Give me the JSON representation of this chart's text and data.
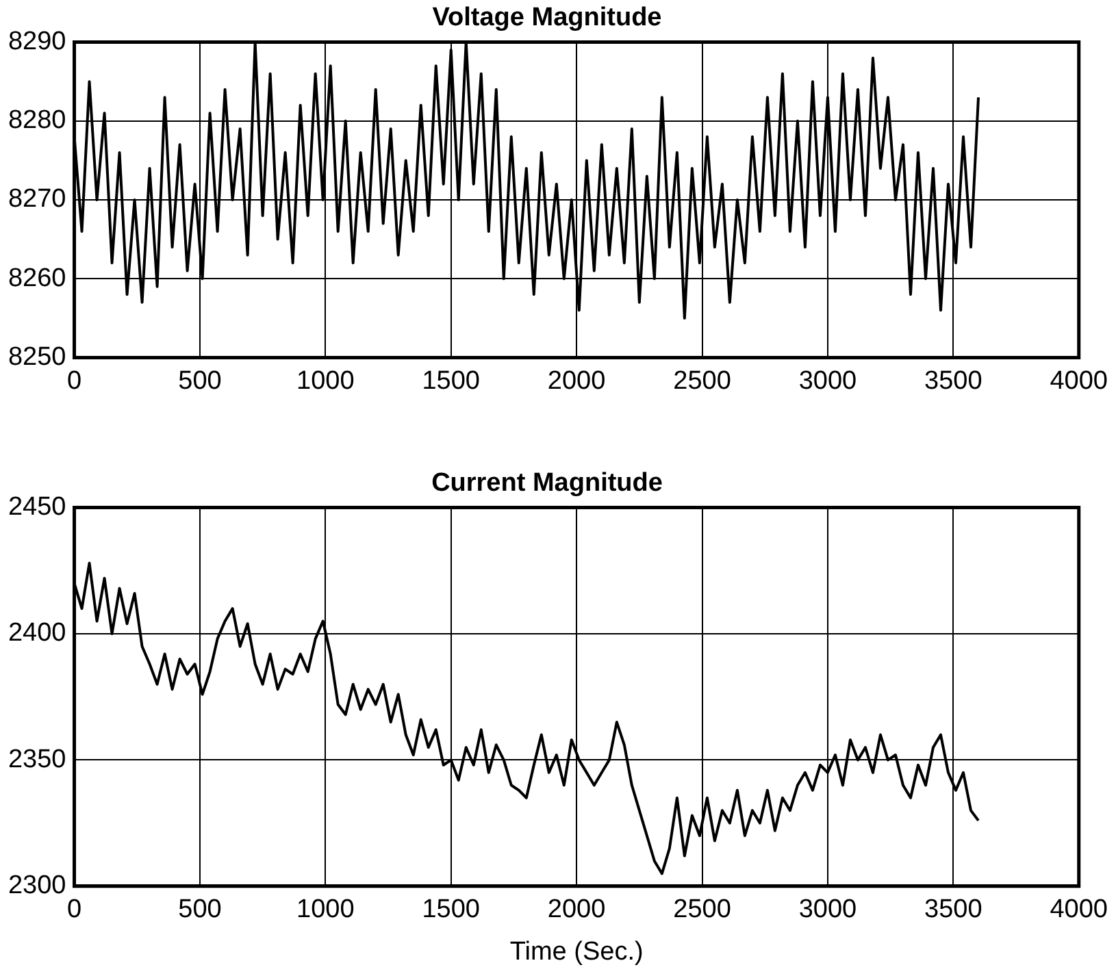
{
  "chart_data": [
    {
      "type": "line",
      "title": "Voltage Magnitude",
      "x": [
        0,
        30,
        60,
        90,
        120,
        150,
        180,
        210,
        240,
        270,
        300,
        330,
        360,
        390,
        420,
        450,
        480,
        510,
        540,
        570,
        600,
        630,
        660,
        690,
        720,
        750,
        780,
        810,
        840,
        870,
        900,
        930,
        960,
        990,
        1020,
        1050,
        1080,
        1110,
        1140,
        1170,
        1200,
        1230,
        1260,
        1290,
        1320,
        1350,
        1380,
        1410,
        1440,
        1470,
        1500,
        1530,
        1560,
        1590,
        1620,
        1650,
        1680,
        1710,
        1740,
        1770,
        1800,
        1830,
        1860,
        1890,
        1920,
        1950,
        1980,
        2010,
        2040,
        2070,
        2100,
        2130,
        2160,
        2190,
        2220,
        2250,
        2280,
        2310,
        2340,
        2370,
        2400,
        2430,
        2460,
        2490,
        2520,
        2550,
        2580,
        2610,
        2640,
        2670,
        2700,
        2730,
        2760,
        2790,
        2820,
        2850,
        2880,
        2910,
        2940,
        2970,
        3000,
        3030,
        3060,
        3090,
        3120,
        3150,
        3180,
        3210,
        3240,
        3270,
        3300,
        3330,
        3360,
        3390,
        3420,
        3450,
        3480,
        3510,
        3540,
        3570,
        3600
      ],
      "series": [
        {
          "color": "#000000",
          "values": [
            8278,
            8266,
            8285,
            8270,
            8281,
            8262,
            8276,
            8258,
            8270,
            8257,
            8274,
            8259,
            8283,
            8264,
            8277,
            8261,
            8272,
            8260,
            8281,
            8266,
            8284,
            8270,
            8279,
            8263,
            8290,
            8268,
            8286,
            8265,
            8276,
            8262,
            8282,
            8268,
            8286,
            8270,
            8287,
            8266,
            8280,
            8262,
            8276,
            8266,
            8284,
            8267,
            8279,
            8263,
            8275,
            8266,
            8282,
            8268,
            8287,
            8272,
            8289,
            8270,
            8290,
            8272,
            8286,
            8266,
            8284,
            8260,
            8278,
            8262,
            8274,
            8258,
            8276,
            8263,
            8272,
            8260,
            8270,
            8256,
            8275,
            8261,
            8277,
            8263,
            8274,
            8262,
            8279,
            8257,
            8273,
            8260,
            8283,
            8264,
            8276,
            8255,
            8274,
            8262,
            8278,
            8264,
            8272,
            8257,
            8270,
            8262,
            8278,
            8266,
            8283,
            8268,
            8286,
            8266,
            8280,
            8264,
            8285,
            8268,
            8283,
            8266,
            8286,
            8270,
            8284,
            8268,
            8288,
            8274,
            8283,
            8270,
            8277,
            8258,
            8276,
            8260,
            8274,
            8256,
            8272,
            8262,
            8278,
            8264,
            8283
          ]
        }
      ],
      "xlim": [
        0,
        4000
      ],
      "xticks": [
        0,
        500,
        1000,
        1500,
        2000,
        2500,
        3000,
        3500,
        4000
      ],
      "ylim": [
        8250,
        8290
      ],
      "yticks": [
        8250,
        8260,
        8270,
        8280,
        8290
      ],
      "grid": true,
      "legend": false,
      "marker": "none",
      "line_style": "solid"
    },
    {
      "type": "line",
      "title": "Current Magnitude",
      "xlabel": "Time (Sec.)",
      "x": [
        0,
        30,
        60,
        90,
        120,
        150,
        180,
        210,
        240,
        270,
        300,
        330,
        360,
        390,
        420,
        450,
        480,
        510,
        540,
        570,
        600,
        630,
        660,
        690,
        720,
        750,
        780,
        810,
        840,
        870,
        900,
        930,
        960,
        990,
        1020,
        1050,
        1080,
        1110,
        1140,
        1170,
        1200,
        1230,
        1260,
        1290,
        1320,
        1350,
        1380,
        1410,
        1440,
        1470,
        1500,
        1530,
        1560,
        1590,
        1620,
        1650,
        1680,
        1710,
        1740,
        1770,
        1800,
        1830,
        1860,
        1890,
        1920,
        1950,
        1980,
        2010,
        2040,
        2070,
        2100,
        2130,
        2160,
        2190,
        2220,
        2250,
        2280,
        2310,
        2340,
        2370,
        2400,
        2430,
        2460,
        2490,
        2520,
        2550,
        2580,
        2610,
        2640,
        2670,
        2700,
        2730,
        2760,
        2790,
        2820,
        2850,
        2880,
        2910,
        2940,
        2970,
        3000,
        3030,
        3060,
        3090,
        3120,
        3150,
        3180,
        3210,
        3240,
        3270,
        3300,
        3330,
        3360,
        3390,
        3420,
        3450,
        3480,
        3510,
        3540,
        3570,
        3600
      ],
      "series": [
        {
          "color": "#000000",
          "values": [
            2420,
            2410,
            2428,
            2405,
            2422,
            2400,
            2418,
            2404,
            2416,
            2395,
            2388,
            2380,
            2392,
            2378,
            2390,
            2384,
            2388,
            2376,
            2385,
            2398,
            2405,
            2410,
            2395,
            2404,
            2388,
            2380,
            2392,
            2378,
            2386,
            2384,
            2392,
            2385,
            2398,
            2405,
            2392,
            2372,
            2368,
            2380,
            2370,
            2378,
            2372,
            2380,
            2365,
            2376,
            2360,
            2352,
            2366,
            2355,
            2362,
            2348,
            2350,
            2342,
            2355,
            2348,
            2362,
            2345,
            2356,
            2350,
            2340,
            2338,
            2335,
            2348,
            2360,
            2345,
            2352,
            2340,
            2358,
            2350,
            2345,
            2340,
            2345,
            2350,
            2365,
            2356,
            2340,
            2330,
            2320,
            2310,
            2305,
            2315,
            2335,
            2312,
            2328,
            2320,
            2335,
            2318,
            2330,
            2325,
            2338,
            2320,
            2330,
            2325,
            2338,
            2322,
            2335,
            2330,
            2340,
            2345,
            2338,
            2348,
            2345,
            2352,
            2340,
            2358,
            2350,
            2355,
            2345,
            2360,
            2350,
            2352,
            2340,
            2335,
            2348,
            2340,
            2355,
            2360,
            2345,
            2338,
            2345,
            2330,
            2326
          ]
        }
      ],
      "xlim": [
        0,
        4000
      ],
      "xticks": [
        0,
        500,
        1000,
        1500,
        2000,
        2500,
        3000,
        3500,
        4000
      ],
      "ylim": [
        2300,
        2450
      ],
      "yticks": [
        2300,
        2350,
        2400,
        2450
      ],
      "grid": true,
      "legend": false,
      "marker": "none",
      "line_style": "solid"
    }
  ]
}
